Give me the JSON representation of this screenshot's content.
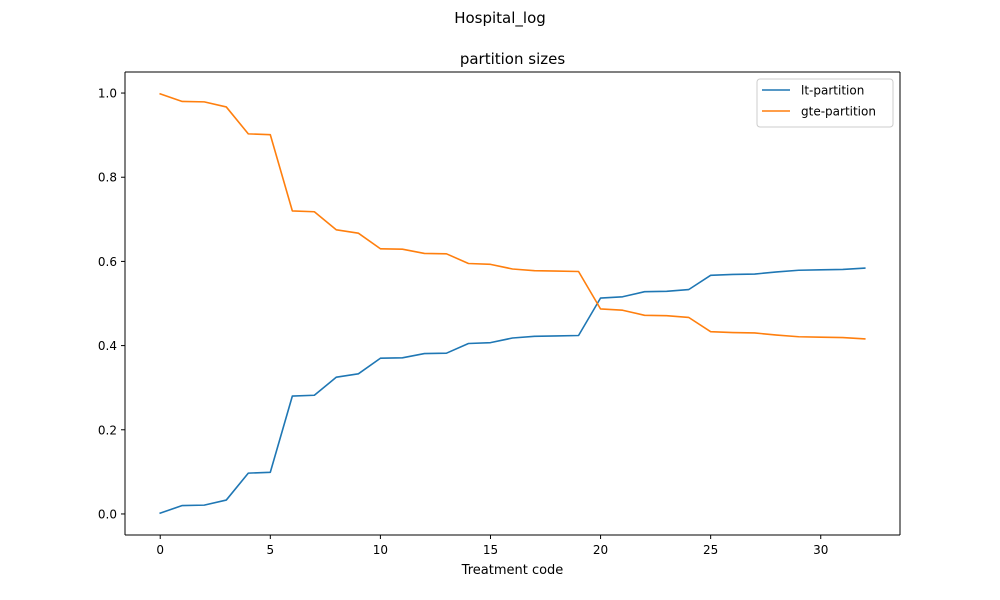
{
  "figure": {
    "suptitle": "Hospital_log"
  },
  "chart_data": {
    "type": "line",
    "title": "partition sizes",
    "xlabel": "Treatment code",
    "ylabel": "",
    "xlim": [
      -1.6,
      33.6
    ],
    "ylim": [
      -0.05,
      1.05
    ],
    "x_ticks": [
      0,
      5,
      10,
      15,
      20,
      25,
      30
    ],
    "y_ticks": [
      0.0,
      0.2,
      0.4,
      0.6,
      0.8,
      1.0
    ],
    "y_tick_labels": [
      "0.0",
      "0.2",
      "0.4",
      "0.6",
      "0.8",
      "1.0"
    ],
    "grid": false,
    "legend_position": "top-right",
    "x": [
      0,
      1,
      2,
      3,
      4,
      5,
      6,
      7,
      8,
      9,
      10,
      11,
      12,
      13,
      14,
      15,
      16,
      17,
      18,
      19,
      20,
      21,
      22,
      23,
      24,
      25,
      26,
      27,
      28,
      29,
      30,
      31,
      32
    ],
    "series": [
      {
        "name": "lt-partition",
        "color": "#1f77b4",
        "values": [
          0.002,
          0.02,
          0.021,
          0.033,
          0.097,
          0.099,
          0.28,
          0.282,
          0.325,
          0.333,
          0.37,
          0.371,
          0.381,
          0.382,
          0.405,
          0.407,
          0.418,
          0.422,
          0.423,
          0.424,
          0.513,
          0.516,
          0.528,
          0.529,
          0.533,
          0.567,
          0.569,
          0.57,
          0.575,
          0.579,
          0.58,
          0.581,
          0.584
        ]
      },
      {
        "name": "gte-partition",
        "color": "#ff7f0e",
        "values": [
          0.998,
          0.98,
          0.979,
          0.967,
          0.903,
          0.901,
          0.72,
          0.718,
          0.675,
          0.667,
          0.63,
          0.629,
          0.619,
          0.618,
          0.595,
          0.593,
          0.582,
          0.578,
          0.577,
          0.576,
          0.487,
          0.484,
          0.472,
          0.471,
          0.467,
          0.433,
          0.431,
          0.43,
          0.425,
          0.421,
          0.42,
          0.419,
          0.416
        ]
      }
    ]
  }
}
